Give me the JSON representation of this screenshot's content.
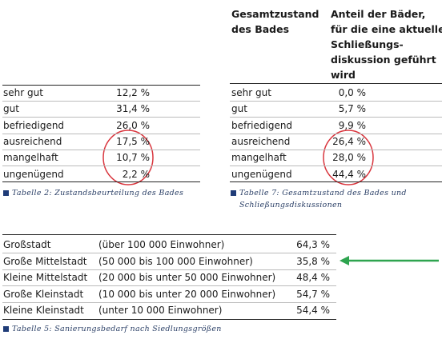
{
  "table2": {
    "rows": [
      [
        "sehr gut",
        "12,2 %"
      ],
      [
        "gut",
        "31,4 %"
      ],
      [
        "befriedigend",
        "26,0 %"
      ],
      [
        "ausreichend",
        "17,5 %"
      ],
      [
        "mangelhaft",
        "10,7 %"
      ],
      [
        "ungenügend",
        "2,2 %"
      ]
    ],
    "caption": "Tabelle 2: Zustandsbeurteilung des Bades"
  },
  "table7": {
    "header": [
      [
        "Gesamtzustand",
        "des Bades"
      ],
      [
        "Anteil der Bäder,",
        "für die eine aktuelle",
        "Schließungs-",
        "diskussion geführt",
        "wird"
      ]
    ],
    "rows": [
      [
        "sehr gut",
        "0,0 %"
      ],
      [
        "gut",
        "5,7 %"
      ],
      [
        "befriedigend",
        "9,9 %"
      ],
      [
        "ausreichend",
        "26,4 %"
      ],
      [
        "mangelhaft",
        "28,0 %"
      ],
      [
        "ungenügend",
        "44,4 %"
      ]
    ],
    "caption": [
      "Tabelle 7: Gesamtzustand des Bades und",
      "Schließungsdiskussionen"
    ]
  },
  "table5": {
    "rows": [
      [
        "Großstadt",
        "(über 100 000 Einwohner)",
        "64,3 %"
      ],
      [
        "Große Mittelstadt",
        "(50 000 bis 100 000 Einwohner)",
        "35,8 %"
      ],
      [
        "Kleine Mittelstadt",
        "(20 000 bis unter 50 000 Einwohner)",
        "48,4 %"
      ],
      [
        "Große Kleinstadt",
        "(10 000 bis unter 20 000 Einwohner)",
        "54,7 %"
      ],
      [
        "Kleine Kleinstadt",
        "(unter 10 000 Einwohner)",
        "54,4 %"
      ]
    ],
    "caption": "Tabelle 5: Sanierungsbedarf nach Siedlungsgrößen"
  }
}
